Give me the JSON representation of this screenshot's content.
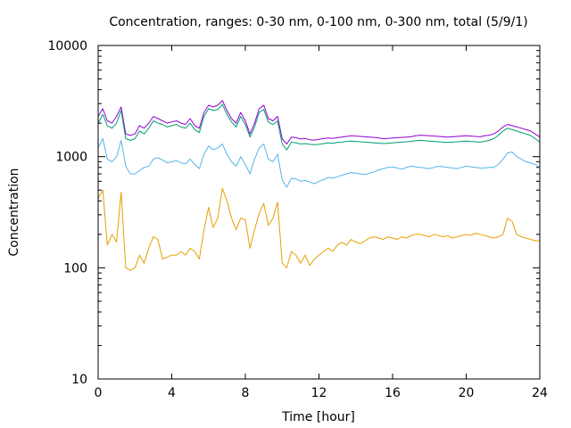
{
  "chart_data": {
    "type": "line",
    "title": "Concentration, ranges: 0-30 nm, 0-100 nm, 0-300 nm, total (5/9/1)",
    "xlabel": "Time [hour]",
    "ylabel": "Concentration",
    "x_scale": "linear",
    "y_scale": "log",
    "xlim": [
      0,
      24
    ],
    "ylim": [
      10,
      10000
    ],
    "x_ticks": [
      0,
      4,
      8,
      12,
      16,
      20,
      24
    ],
    "x_tick_labels": [
      "0",
      "4",
      "8",
      "12",
      "16",
      "20",
      "24"
    ],
    "y_ticks": [
      10,
      100,
      1000,
      10000
    ],
    "y_tick_labels": [
      "10",
      "100",
      "1000",
      "10000"
    ],
    "grid": false,
    "legend": "none",
    "x": [
      0,
      0.25,
      0.5,
      0.75,
      1,
      1.25,
      1.5,
      1.75,
      2,
      2.25,
      2.5,
      2.75,
      3,
      3.25,
      3.5,
      3.75,
      4,
      4.25,
      4.5,
      4.75,
      5,
      5.25,
      5.5,
      5.75,
      6,
      6.25,
      6.5,
      6.75,
      7,
      7.25,
      7.5,
      7.75,
      8,
      8.25,
      8.5,
      8.75,
      9,
      9.25,
      9.5,
      9.75,
      10,
      10.25,
      10.5,
      10.75,
      11,
      11.25,
      11.5,
      11.75,
      12,
      12.25,
      12.5,
      12.75,
      13,
      13.25,
      13.5,
      13.75,
      14,
      14.25,
      14.5,
      14.75,
      15,
      15.25,
      15.5,
      15.75,
      16,
      16.25,
      16.5,
      16.75,
      17,
      17.25,
      17.5,
      17.75,
      18,
      18.25,
      18.5,
      18.75,
      19,
      19.25,
      19.5,
      19.75,
      20,
      20.25,
      20.5,
      20.75,
      21,
      21.25,
      21.5,
      21.75,
      22,
      22.25,
      22.5,
      22.75,
      23,
      23.25,
      23.5,
      23.75,
      24
    ],
    "series": [
      {
        "color": "#9400d3",
        "values": [
          2300,
          2700,
          2100,
          2000,
          2300,
          2800,
          1600,
          1550,
          1600,
          1900,
          1800,
          2000,
          2300,
          2200,
          2100,
          2000,
          2050,
          2100,
          2000,
          1950,
          2200,
          1900,
          1800,
          2500,
          2900,
          2800,
          2900,
          3200,
          2600,
          2200,
          2000,
          2500,
          2100,
          1600,
          2000,
          2700,
          2900,
          2200,
          2100,
          2300,
          1450,
          1300,
          1500,
          1480,
          1440,
          1460,
          1420,
          1410,
          1430,
          1450,
          1470,
          1460,
          1480,
          1500,
          1520,
          1540,
          1530,
          1520,
          1510,
          1500,
          1490,
          1470,
          1450,
          1460,
          1470,
          1480,
          1490,
          1500,
          1510,
          1540,
          1560,
          1550,
          1540,
          1530,
          1520,
          1510,
          1500,
          1510,
          1520,
          1530,
          1540,
          1530,
          1520,
          1510,
          1540,
          1560,
          1600,
          1700,
          1850,
          1950,
          1900,
          1850,
          1800,
          1750,
          1700,
          1600,
          1500
        ]
      },
      {
        "color": "#009e73",
        "values": [
          2000,
          2400,
          1900,
          1800,
          2000,
          2600,
          1450,
          1400,
          1450,
          1700,
          1600,
          1800,
          2100,
          2000,
          1950,
          1850,
          1900,
          1950,
          1850,
          1800,
          2000,
          1750,
          1650,
          2300,
          2700,
          2600,
          2650,
          2950,
          2400,
          2050,
          1850,
          2300,
          1950,
          1500,
          1850,
          2500,
          2650,
          2050,
          1950,
          2100,
          1300,
          1150,
          1350,
          1330,
          1300,
          1310,
          1290,
          1280,
          1290,
          1310,
          1330,
          1320,
          1340,
          1350,
          1370,
          1380,
          1370,
          1360,
          1350,
          1340,
          1330,
          1320,
          1310,
          1320,
          1330,
          1340,
          1350,
          1360,
          1370,
          1390,
          1400,
          1390,
          1380,
          1370,
          1360,
          1350,
          1340,
          1350,
          1360,
          1370,
          1380,
          1370,
          1360,
          1350,
          1370,
          1400,
          1450,
          1550,
          1700,
          1800,
          1750,
          1700,
          1650,
          1600,
          1550,
          1450,
          1350
        ]
      },
      {
        "color": "#56b4e9",
        "values": [
          1200,
          1450,
          950,
          900,
          1000,
          1400,
          820,
          700,
          700,
          750,
          800,
          820,
          950,
          980,
          930,
          880,
          900,
          920,
          880,
          860,
          950,
          850,
          780,
          1050,
          1250,
          1150,
          1200,
          1300,
          1050,
          900,
          820,
          1000,
          850,
          700,
          950,
          1200,
          1300,
          950,
          900,
          1050,
          620,
          530,
          640,
          630,
          600,
          610,
          590,
          570,
          600,
          620,
          650,
          640,
          660,
          680,
          700,
          720,
          710,
          700,
          690,
          710,
          730,
          760,
          780,
          800,
          810,
          790,
          770,
          800,
          820,
          810,
          800,
          790,
          780,
          800,
          820,
          810,
          800,
          790,
          780,
          800,
          820,
          810,
          800,
          790,
          790,
          800,
          800,
          850,
          950,
          1080,
          1100,
          1000,
          950,
          900,
          880,
          850,
          800
        ]
      },
      {
        "color": "#e69f00",
        "values": [
          420,
          500,
          160,
          200,
          170,
          480,
          100,
          95,
          100,
          130,
          110,
          150,
          190,
          180,
          120,
          125,
          130,
          130,
          140,
          130,
          150,
          140,
          120,
          220,
          350,
          230,
          280,
          520,
          400,
          280,
          220,
          280,
          270,
          150,
          220,
          310,
          380,
          240,
          280,
          390,
          110,
          100,
          140,
          130,
          110,
          130,
          105,
          120,
          130,
          140,
          150,
          140,
          160,
          170,
          160,
          180,
          170,
          165,
          175,
          185,
          190,
          185,
          180,
          190,
          185,
          180,
          190,
          185,
          195,
          200,
          200,
          195,
          190,
          200,
          195,
          190,
          195,
          185,
          190,
          195,
          200,
          195,
          205,
          200,
          195,
          190,
          185,
          190,
          200,
          280,
          260,
          200,
          190,
          185,
          180,
          175,
          175
        ]
      }
    ]
  }
}
